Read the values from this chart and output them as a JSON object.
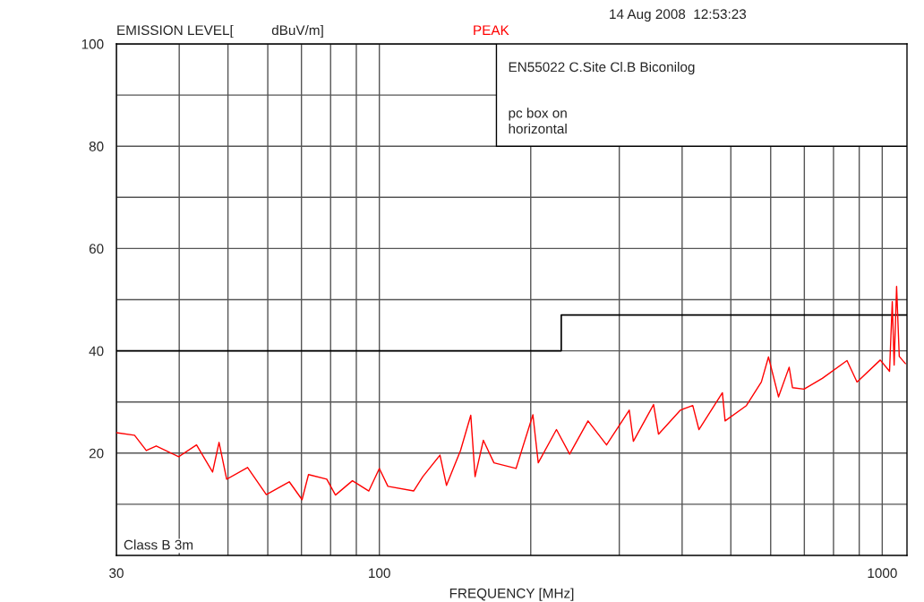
{
  "chart_data": {
    "type": "line",
    "ylabel": "EMISSION LEVEL[          dBuV/m]",
    "subtitle": "PEAK",
    "xlabel": "FREQUENCY [MHz]",
    "annotations": [
      "14 Aug 2008  12:53:23",
      "EN55022 C.Site Cl.B Biconilog",
      "pc box on\nhorizontal",
      "Class B 3m"
    ],
    "log": "x",
    "xlim": [
      30,
      1120
    ],
    "xticks": [
      30,
      {
        "value": 40,
        "label": null
      },
      {
        "value": 50,
        "label": null
      },
      {
        "value": 60,
        "label": null
      },
      {
        "value": 70,
        "label": null
      },
      {
        "value": 80,
        "label": null
      },
      {
        "value": 90,
        "label": null
      },
      100,
      {
        "value": 200,
        "label": null
      },
      {
        "value": 300,
        "label": null
      },
      {
        "value": 400,
        "label": null
      },
      {
        "value": 500,
        "label": null
      },
      {
        "value": 600,
        "label": null
      },
      {
        "value": 700,
        "label": null
      },
      {
        "value": 800,
        "label": null
      },
      {
        "value": 900,
        "label": null
      },
      1000
    ],
    "ylim": [
      0,
      100
    ],
    "yticks": [
      {
        "value": 10,
        "label": null
      },
      20,
      {
        "value": 30,
        "label": null
      },
      40,
      {
        "value": 50,
        "label": null
      },
      60,
      {
        "value": 70,
        "label": null
      },
      80,
      {
        "value": 90,
        "label": null
      },
      100
    ],
    "grid": true,
    "series": [
      {
        "type": "step",
        "color": "#000000",
        "x": [
          30,
          230,
          1120
        ],
        "values": [
          40,
          47,
          47
        ]
      },
      {
        "color": "#ff0000",
        "x": [
          30,
          32.6,
          34.4,
          36,
          39.9,
          43.3,
          46.6,
          48,
          49.7,
          54.7,
          59.6,
          66.2,
          70.2,
          72.3,
          78.6,
          81.8,
          88.4,
          95.3,
          100,
          104,
          117,
          122,
          132,
          136,
          145,
          152,
          155,
          161,
          169,
          187,
          202,
          207,
          225,
          239,
          260,
          283,
          314,
          320,
          351,
          359,
          397,
          420,
          432,
          481,
          487,
          537,
          575,
          594,
          622,
          653,
          663,
          699,
          760,
          851,
          891,
          991,
          1034,
          1047,
          1056,
          1068,
          1081,
          1112
        ],
        "values": [
          24.0,
          23.5,
          20.5,
          21.4,
          19.3,
          21.6,
          16.3,
          22.1,
          14.9,
          17.2,
          11.9,
          14.4,
          10.9,
          15.8,
          14.9,
          11.8,
          14.6,
          12.6,
          17.0,
          13.5,
          12.6,
          15.4,
          19.6,
          13.7,
          20.5,
          27.4,
          15.4,
          22.5,
          18.1,
          17.0,
          27.5,
          18.1,
          24.6,
          19.8,
          26.3,
          21.6,
          28.4,
          22.3,
          29.5,
          23.7,
          28.4,
          29.3,
          24.6,
          31.8,
          26.3,
          29.3,
          33.9,
          38.8,
          31.0,
          36.8,
          32.8,
          32.5,
          34.6,
          38.1,
          33.9,
          38.2,
          36.0,
          49.6,
          37.2,
          52.6,
          38.9,
          37.5
        ]
      }
    ]
  }
}
